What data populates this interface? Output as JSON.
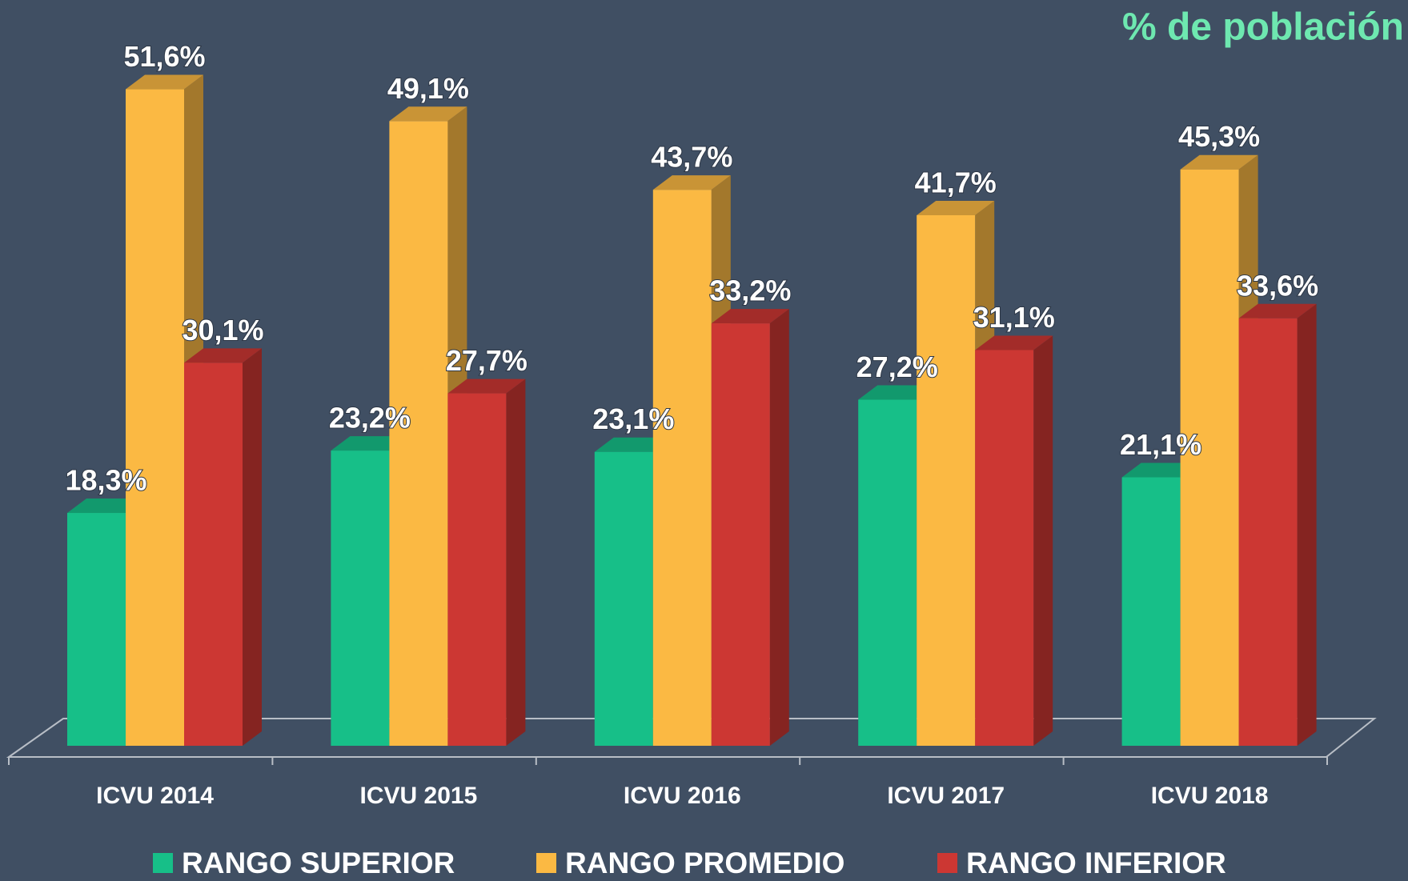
{
  "chart_data": {
    "type": "bar3d",
    "title": "% de población",
    "categories": [
      "ICVU 2014",
      "ICVU 2015",
      "ICVU 2016",
      "ICVU 2017",
      "ICVU 2018"
    ],
    "series": [
      {
        "name": "RANGO SUPERIOR",
        "color": "#17bf88",
        "values": [
          18.3,
          23.2,
          23.1,
          27.2,
          21.1
        ],
        "value_labels": [
          "18,3%",
          "23,2%",
          "23,1%",
          "27,2%",
          "21,1%"
        ]
      },
      {
        "name": "RANGO PROMEDIO",
        "color": "#fbb943",
        "values": [
          51.6,
          49.1,
          43.7,
          41.7,
          45.3
        ],
        "value_labels": [
          "51,6%",
          "49,1%",
          "43,7%",
          "41,7%",
          "45,3%"
        ]
      },
      {
        "name": "RANGO INFERIOR",
        "color": "#cc3733",
        "values": [
          30.1,
          27.7,
          33.2,
          31.1,
          33.6
        ],
        "value_labels": [
          "30,1%",
          "27,7%",
          "33,2%",
          "31,1%",
          "33,6%"
        ]
      }
    ],
    "legend": "bottom"
  }
}
